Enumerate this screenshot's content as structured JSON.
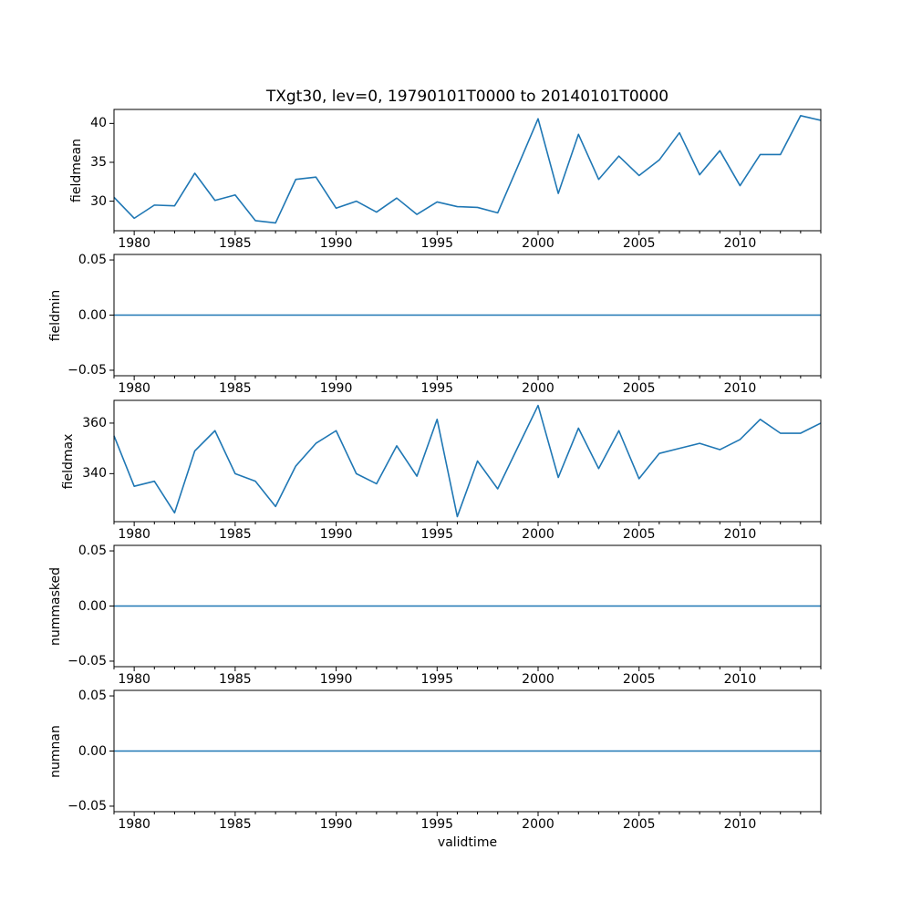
{
  "figure": {
    "title": "TXgt30, lev=0, 19790101T0000 to 20140101T0000",
    "xlabel": "validtime",
    "line_color": "#1f77b4",
    "spine_color": "#000000",
    "background": "#ffffff",
    "x_minor_ticks_every_years": 1
  },
  "chart_data": [
    {
      "type": "line",
      "ylabel": "fieldmean",
      "x": [
        1979,
        1980,
        1981,
        1982,
        1983,
        1984,
        1985,
        1986,
        1987,
        1988,
        1989,
        1990,
        1991,
        1992,
        1993,
        1994,
        1995,
        1996,
        1997,
        1998,
        1999,
        2000,
        2001,
        2002,
        2003,
        2004,
        2005,
        2006,
        2007,
        2008,
        2009,
        2010,
        2011,
        2012,
        2013,
        2014
      ],
      "values": [
        30.5,
        27.8,
        29.5,
        29.4,
        33.6,
        30.1,
        30.8,
        27.5,
        27.2,
        32.8,
        33.1,
        29.1,
        30.0,
        28.6,
        30.4,
        28.3,
        29.9,
        29.3,
        29.2,
        28.5,
        34.5,
        40.6,
        31.0,
        38.6,
        32.8,
        35.8,
        33.3,
        35.3,
        38.8,
        33.4,
        36.5,
        32.0,
        36.0,
        36.0,
        41.0,
        40.4
      ],
      "xlim": [
        1979,
        2014
      ],
      "ylim": [
        26.2,
        41.8
      ],
      "xticks": [
        1980,
        1985,
        1990,
        1995,
        2000,
        2005,
        2010
      ],
      "xtick_labels": [
        "1980",
        "1985",
        "1990",
        "1995",
        "2000",
        "2005",
        "2010"
      ],
      "yticks": [
        30,
        35,
        40
      ],
      "ytick_labels": [
        "30",
        "35",
        "40"
      ],
      "grid": false,
      "legend": null
    },
    {
      "type": "line",
      "ylabel": "fieldmin",
      "x": [
        1979,
        1980,
        1981,
        1982,
        1983,
        1984,
        1985,
        1986,
        1987,
        1988,
        1989,
        1990,
        1991,
        1992,
        1993,
        1994,
        1995,
        1996,
        1997,
        1998,
        1999,
        2000,
        2001,
        2002,
        2003,
        2004,
        2005,
        2006,
        2007,
        2008,
        2009,
        2010,
        2011,
        2012,
        2013,
        2014
      ],
      "values": [
        0,
        0,
        0,
        0,
        0,
        0,
        0,
        0,
        0,
        0,
        0,
        0,
        0,
        0,
        0,
        0,
        0,
        0,
        0,
        0,
        0,
        0,
        0,
        0,
        0,
        0,
        0,
        0,
        0,
        0,
        0,
        0,
        0,
        0,
        0,
        0
      ],
      "xlim": [
        1979,
        2014
      ],
      "ylim": [
        -0.055,
        0.055
      ],
      "xticks": [
        1980,
        1985,
        1990,
        1995,
        2000,
        2005,
        2010
      ],
      "xtick_labels": [
        "1980",
        "1985",
        "1990",
        "1995",
        "2000",
        "2005",
        "2010"
      ],
      "yticks": [
        -0.05,
        0,
        0.05
      ],
      "ytick_labels": [
        "−0.05",
        "0.00",
        "0.05"
      ],
      "grid": false,
      "legend": null
    },
    {
      "type": "line",
      "ylabel": "fieldmax",
      "x": [
        1979,
        1980,
        1981,
        1982,
        1983,
        1984,
        1985,
        1986,
        1987,
        1988,
        1989,
        1990,
        1991,
        1992,
        1993,
        1994,
        1995,
        1996,
        1997,
        1998,
        1999,
        2000,
        2001,
        2002,
        2003,
        2004,
        2005,
        2006,
        2007,
        2008,
        2009,
        2010,
        2011,
        2012,
        2013,
        2014
      ],
      "values": [
        355,
        335,
        337,
        324.5,
        349,
        357,
        340,
        337,
        327,
        343,
        352,
        357,
        340,
        336,
        351,
        339,
        361.5,
        323,
        345,
        334,
        350.5,
        367,
        338.5,
        358,
        342,
        357,
        338,
        348,
        350,
        352,
        349.5,
        353.5,
        361.5,
        356,
        356,
        360
      ],
      "xlim": [
        1979,
        2014
      ],
      "ylim": [
        321,
        369
      ],
      "xticks": [
        1980,
        1985,
        1990,
        1995,
        2000,
        2005,
        2010
      ],
      "xtick_labels": [
        "1980",
        "1985",
        "1990",
        "1995",
        "2000",
        "2005",
        "2010"
      ],
      "yticks": [
        340,
        360
      ],
      "ytick_labels": [
        "340",
        "360"
      ],
      "grid": false,
      "legend": null
    },
    {
      "type": "line",
      "ylabel": "nummasked",
      "x": [
        1979,
        1980,
        1981,
        1982,
        1983,
        1984,
        1985,
        1986,
        1987,
        1988,
        1989,
        1990,
        1991,
        1992,
        1993,
        1994,
        1995,
        1996,
        1997,
        1998,
        1999,
        2000,
        2001,
        2002,
        2003,
        2004,
        2005,
        2006,
        2007,
        2008,
        2009,
        2010,
        2011,
        2012,
        2013,
        2014
      ],
      "values": [
        0,
        0,
        0,
        0,
        0,
        0,
        0,
        0,
        0,
        0,
        0,
        0,
        0,
        0,
        0,
        0,
        0,
        0,
        0,
        0,
        0,
        0,
        0,
        0,
        0,
        0,
        0,
        0,
        0,
        0,
        0,
        0,
        0,
        0,
        0,
        0
      ],
      "xlim": [
        1979,
        2014
      ],
      "ylim": [
        -0.055,
        0.055
      ],
      "xticks": [
        1980,
        1985,
        1990,
        1995,
        2000,
        2005,
        2010
      ],
      "xtick_labels": [
        "1980",
        "1985",
        "1990",
        "1995",
        "2000",
        "2005",
        "2010"
      ],
      "yticks": [
        -0.05,
        0,
        0.05
      ],
      "ytick_labels": [
        "−0.05",
        "0.00",
        "0.05"
      ],
      "grid": false,
      "legend": null
    },
    {
      "type": "line",
      "ylabel": "numnan",
      "x": [
        1979,
        1980,
        1981,
        1982,
        1983,
        1984,
        1985,
        1986,
        1987,
        1988,
        1989,
        1990,
        1991,
        1992,
        1993,
        1994,
        1995,
        1996,
        1997,
        1998,
        1999,
        2000,
        2001,
        2002,
        2003,
        2004,
        2005,
        2006,
        2007,
        2008,
        2009,
        2010,
        2011,
        2012,
        2013,
        2014
      ],
      "values": [
        0,
        0,
        0,
        0,
        0,
        0,
        0,
        0,
        0,
        0,
        0,
        0,
        0,
        0,
        0,
        0,
        0,
        0,
        0,
        0,
        0,
        0,
        0,
        0,
        0,
        0,
        0,
        0,
        0,
        0,
        0,
        0,
        0,
        0,
        0,
        0
      ],
      "xlim": [
        1979,
        2014
      ],
      "ylim": [
        -0.055,
        0.055
      ],
      "xticks": [
        1980,
        1985,
        1990,
        1995,
        2000,
        2005,
        2010
      ],
      "xtick_labels": [
        "1980",
        "1985",
        "1990",
        "1995",
        "2000",
        "2005",
        "2010"
      ],
      "yticks": [
        -0.05,
        0,
        0.05
      ],
      "ytick_labels": [
        "−0.05",
        "0.00",
        "0.05"
      ],
      "grid": false,
      "legend": null
    }
  ]
}
